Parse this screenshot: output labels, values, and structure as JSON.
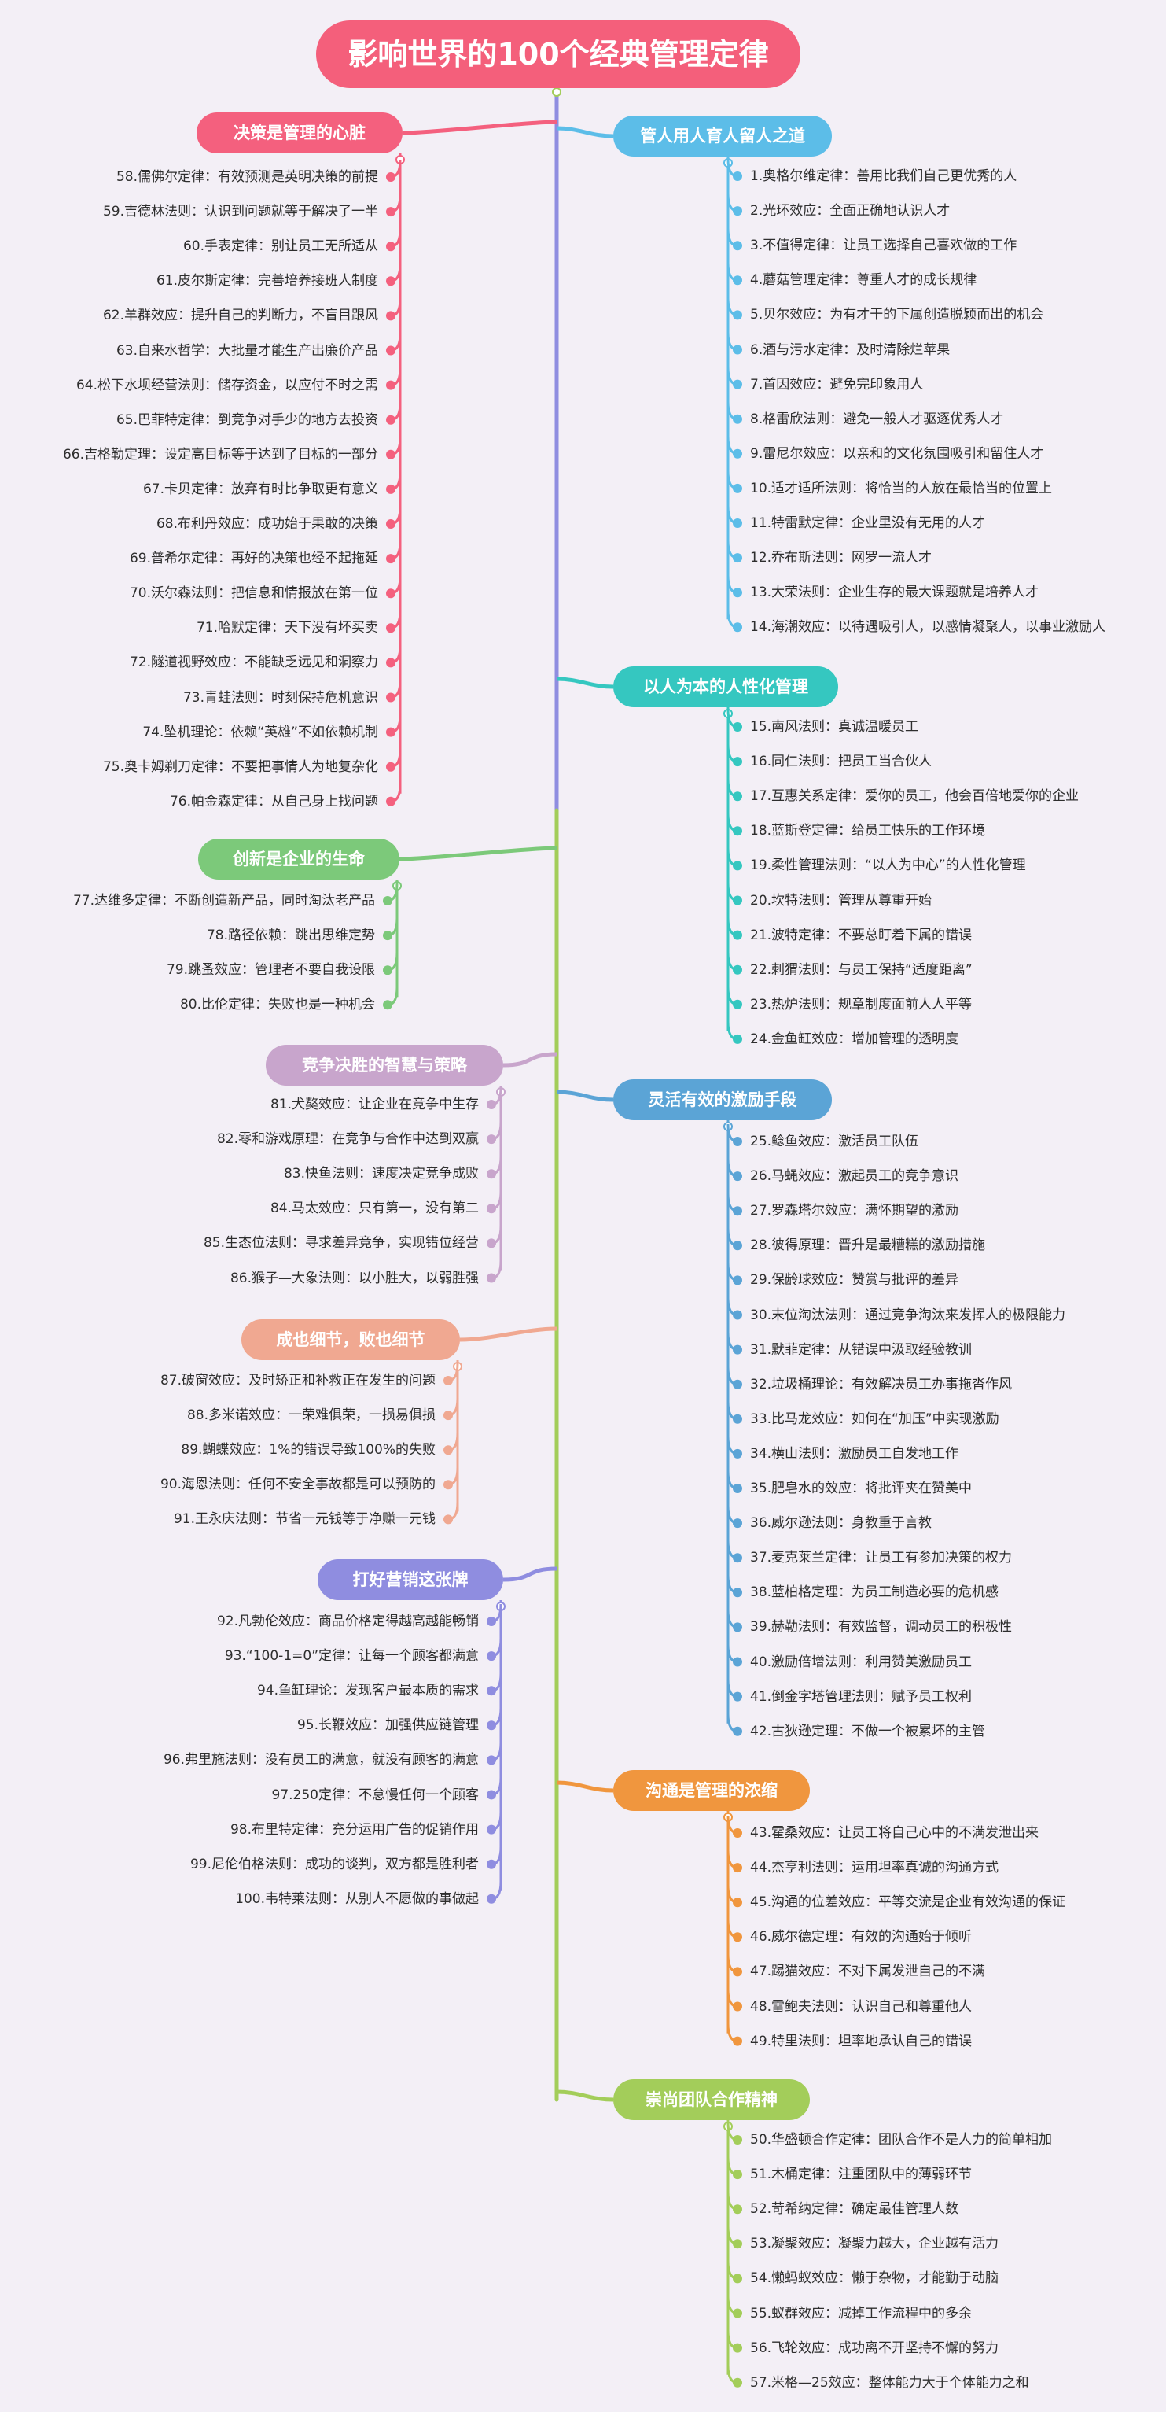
{
  "title": "影响世界的100个经典管理定律",
  "left": [
    {
      "label": "决策是管理的心脏",
      "color": "#f4607e",
      "items": [
        "58.儒佛尔定律：有效预测是英明决策的前提",
        "59.吉德林法则：认识到问题就等于解决了一半",
        "60.手表定律：别让员工无所适从",
        "61.皮尔斯定律：完善培养接班人制度",
        "62.羊群效应：提升自己的判断力，不盲目跟风",
        "63.自来水哲学：大批量才能生产出廉价产品",
        "64.松下水坝经营法则：储存资金，以应付不时之需",
        "65.巴菲特定律：到竞争对手少的地方去投资",
        "66.吉格勒定理：设定高目标等于达到了目标的一部分",
        "67.卡贝定律：放弃有时比争取更有意义",
        "68.布利丹效应：成功始于果敢的决策",
        "69.普希尔定律：再好的决策也经不起拖延",
        "70.沃尔森法则：把信息和情报放在第一位",
        "71.哈默定律：天下没有坏买卖",
        "72.隧道视野效应：不能缺乏远见和洞察力",
        "73.青蛙法则：时刻保持危机意识",
        "74.坠机理论：依赖“英雄”不如依赖机制",
        "75.奥卡姆剃刀定律：不要把事情人为地复杂化",
        "76.帕金森定律：从自己身上找问题"
      ]
    },
    {
      "label": "创新是企业的生命",
      "color": "#7cc97a",
      "items": [
        "77.达维多定律：不断创造新产品，同时淘汰老产品",
        "78.路径依赖：跳出思维定势",
        "79.跳蚤效应：管理者不要自我设限",
        "80.比伦定律：失败也是一种机会"
      ]
    },
    {
      "label": "竞争决胜的智慧与策略",
      "color": "#c8a5cc",
      "items": [
        "81.犬獒效应：让企业在竞争中生存",
        "82.零和游戏原理：在竞争与合作中达到双赢",
        "83.快鱼法则：速度决定竞争成败",
        "84.马太效应：只有第一，没有第二",
        "85.生态位法则：寻求差异竞争，实现错位经营",
        "86.猴子—大象法则：以小胜大，以弱胜强"
      ]
    },
    {
      "label": "成也细节，败也细节",
      "color": "#f0a891",
      "items": [
        "87.破窗效应：及时矫正和补救正在发生的问题",
        "88.多米诺效应：一荣难俱荣，一损易俱损",
        "89.蝴蝶效应：1%的错误导致100%的失败",
        "90.海恩法则：任何不安全事故都是可以预防的",
        "91.王永庆法则：节省一元钱等于净赚一元钱"
      ]
    },
    {
      "label": "打好营销这张牌",
      "color": "#8f8de0",
      "items": [
        "92.凡勃伦效应：商品价格定得越高越能畅销",
        "93.“100-1=0”定律：让每一个顾客都满意",
        "94.鱼缸理论：发现客户最本质的需求",
        "95.长鞭效应：加强供应链管理",
        "96.弗里施法则：没有员工的满意，就没有顾客的满意",
        "97.250定律：不怠慢任何一个顾客",
        "98.布里特定律：充分运用广告的促销作用",
        "99.尼伦伯格法则：成功的谈判，双方都是胜利者",
        "100.韦特莱法则：从别人不愿做的事做起"
      ]
    }
  ],
  "right": [
    {
      "label": "管人用人育人留人之道",
      "color": "#5cbde8",
      "items": [
        "1.奥格尔维定律：善用比我们自己更优秀的人",
        "2.光环效应：全面正确地认识人才",
        "3.不值得定律：让员工选择自己喜欢做的工作",
        "4.蘑菇管理定律：尊重人才的成长规律",
        "5.贝尔效应：为有才干的下属创造脱颖而出的机会",
        "6.酒与污水定律：及时清除烂苹果",
        "7.首因效应：避免完印象用人",
        "8.格雷欣法则：避免一般人才驱逐优秀人才",
        "9.雷尼尔效应：以亲和的文化氛围吸引和留住人才",
        "10.适才适所法则：将恰当的人放在最恰当的位置上",
        "11.特雷默定律：企业里没有无用的人才",
        "12.乔布斯法则：网罗一流人才",
        "13.大荣法则：企业生存的最大课题就是培养人才",
        "14.海潮效应：以待遇吸引人，以感情凝聚人，以事业激励人"
      ]
    },
    {
      "label": "以人为本的人性化管理",
      "color": "#35c7c0",
      "items": [
        "15.南风法则：真诚温暖员工",
        "16.同仁法则：把员工当合伙人",
        "17.互惠关系定律：爱你的员工，他会百倍地爱你的企业",
        "18.蓝斯登定律：给员工快乐的工作环境",
        "19.柔性管理法则：“以人为中心”的人性化管理",
        "20.坎特法则：管理从尊重开始",
        "21.波特定律：不要总盯着下属的错误",
        "22.刺猬法则：与员工保持“适度距离”",
        "23.热炉法则：规章制度面前人人平等",
        "24.金鱼缸效应：增加管理的透明度"
      ]
    },
    {
      "label": "灵活有效的激励手段",
      "color": "#5ba4d6",
      "items": [
        "25.鲶鱼效应：激活员工队伍",
        "26.马蝇效应：激起员工的竞争意识",
        "27.罗森塔尔效应：满怀期望的激励",
        "28.彼得原理：晋升是最糟糕的激励措施",
        "29.保龄球效应：赞赏与批评的差异",
        "30.末位淘汰法则：通过竞争淘汰来发挥人的极限能力",
        "31.默菲定律：从错误中汲取经验教训",
        "32.垃圾桶理论：有效解决员工办事拖沓作风",
        "33.比马龙效应：如何在“加压”中实现激励",
        "34.横山法则：激励员工自发地工作",
        "35.肥皂水的效应：将批评夹在赞美中",
        "36.威尔逊法则：身教重于言教",
        "37.麦克莱兰定律：让员工有参加决策的权力",
        "38.蓝柏格定理：为员工制造必要的危机感",
        "39.赫勒法则：有效监督，调动员工的积极性",
        "40.激励倍增法则：利用赞美激励员工",
        "41.倒金字塔管理法则：赋予员工权利",
        "42.古狄逊定理：不做一个被累坏的主管"
      ]
    },
    {
      "label": "沟通是管理的浓缩",
      "color": "#f0963e",
      "items": [
        "43.霍桑效应：让员工将自己心中的不满发泄出来",
        "44.杰亨利法则：运用坦率真诚的沟通方式",
        "45.沟通的位差效应：平等交流是企业有效沟通的保证",
        "46.威尔德定理：有效的沟通始于倾听",
        "47.踢猫效应：不对下属发泄自己的不满",
        "48.雷鲍夫法则：认识自己和尊重他人",
        "49.特里法则：坦率地承认自己的错误"
      ]
    },
    {
      "label": "崇尚团队合作精神",
      "color": "#a3cd5a",
      "items": [
        "50.华盛顿合作定律：团队合作不是人力的简单相加",
        "51.木桶定律：注重团队中的薄弱环节",
        "52.苛希纳定律：确定最佳管理人数",
        "53.凝聚效应：凝聚力越大，企业越有活力",
        "54.懒蚂蚁效应：懒于杂物，才能勤于动脑",
        "55.蚁群效应：减掉工作流程中的多余",
        "56.飞轮效应：成功离不开坚持不懈的努力",
        "57.米格—25效应：整体能力大于个体能力之和"
      ]
    }
  ]
}
